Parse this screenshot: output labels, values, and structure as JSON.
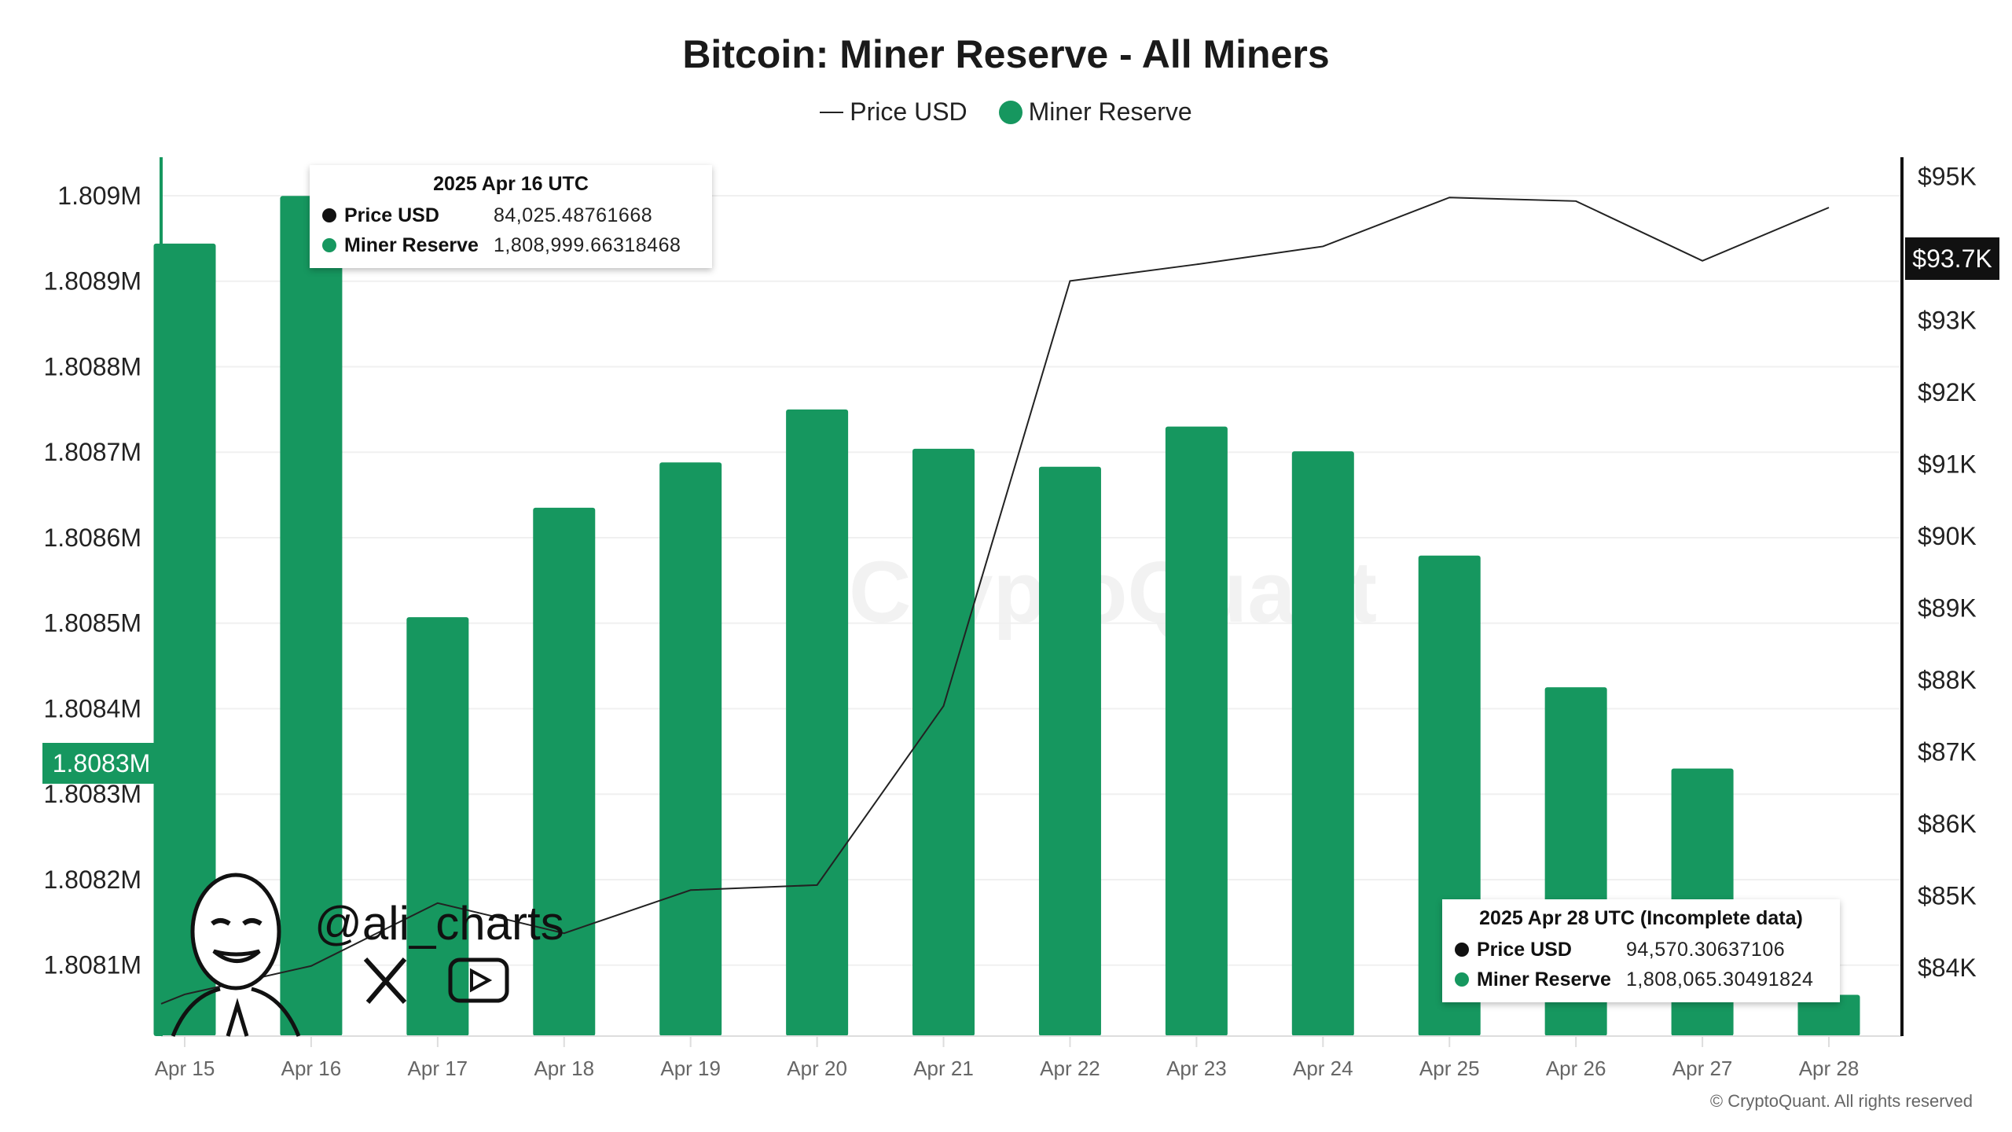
{
  "chart_data": {
    "type": "bar",
    "title": "Bitcoin: Miner Reserve - All Miners",
    "categories": [
      "Apr 15",
      "Apr 16",
      "Apr 17",
      "Apr 18",
      "Apr 19",
      "Apr 20",
      "Apr 21",
      "Apr 22",
      "Apr 23",
      "Apr 24",
      "Apr 25",
      "Apr 26",
      "Apr 27",
      "Apr 28"
    ],
    "series": [
      {
        "name": "Miner Reserve",
        "type": "bar",
        "axis": "left",
        "color": "#16975f",
        "values": [
          1808944,
          1808999.66,
          1808507,
          1808635,
          1808688,
          1808750,
          1808704,
          1808683,
          1808730,
          1808701,
          1808579,
          1808425,
          1808330,
          1808065.3
        ]
      },
      {
        "name": "Price USD",
        "type": "line",
        "axis": "right",
        "color": "#222222",
        "values": [
          83630,
          84025.49,
          84900,
          84480,
          85080,
          85150,
          87640,
          93550,
          93780,
          94030,
          94710,
          94660,
          93830,
          94570.31
        ]
      }
    ],
    "left_axis": {
      "ylim": [
        1808017,
        1809045
      ],
      "ticks": [
        1808100,
        1808200,
        1808300,
        1808400,
        1808500,
        1808600,
        1808700,
        1808800,
        1808900,
        1809000
      ],
      "tick_labels": [
        "1.8081M",
        "1.8082M",
        "1.8083M",
        "1.8084M",
        "1.8085M",
        "1.8086M",
        "1.8087M",
        "1.8088M",
        "1.8089M",
        "1.809M"
      ],
      "highlight": {
        "label": "1.8083M",
        "value": 1808300,
        "color": "#16975f"
      }
    },
    "right_axis": {
      "ylim": [
        83050,
        95270
      ],
      "ticks": [
        84000,
        85000,
        86000,
        87000,
        88000,
        89000,
        90000,
        91000,
        92000,
        93000,
        95000
      ],
      "tick_labels": [
        "$84K",
        "$85K",
        "$86K",
        "$87K",
        "$88K",
        "$89K",
        "$90K",
        "$91K",
        "$92K",
        "$93K",
        "$95K"
      ],
      "highlight": {
        "label": "$93.7K",
        "value": 93700,
        "color": "#111111"
      }
    },
    "grid": true,
    "legend": "top-center",
    "legend_entries": [
      "Price USD",
      "Miner Reserve"
    ]
  },
  "tooltips": [
    {
      "header": "2025 Apr 16 UTC",
      "rows": [
        {
          "label": "Price USD",
          "value": "84,025.48761668",
          "color": "#111111"
        },
        {
          "label": "Miner Reserve",
          "value": "1,808,999.66318468",
          "color": "#16975f"
        }
      ]
    },
    {
      "header": "2025 Apr 28 UTC (Incomplete data)",
      "rows": [
        {
          "label": "Price USD",
          "value": "94,570.30637106",
          "color": "#111111"
        },
        {
          "label": "Miner Reserve",
          "value": "1,808,065.30491824",
          "color": "#16975f"
        }
      ]
    }
  ],
  "watermark": "CryptoQuant",
  "handle": "@ali_charts",
  "copyright": "© CryptoQuant. All rights reserved"
}
